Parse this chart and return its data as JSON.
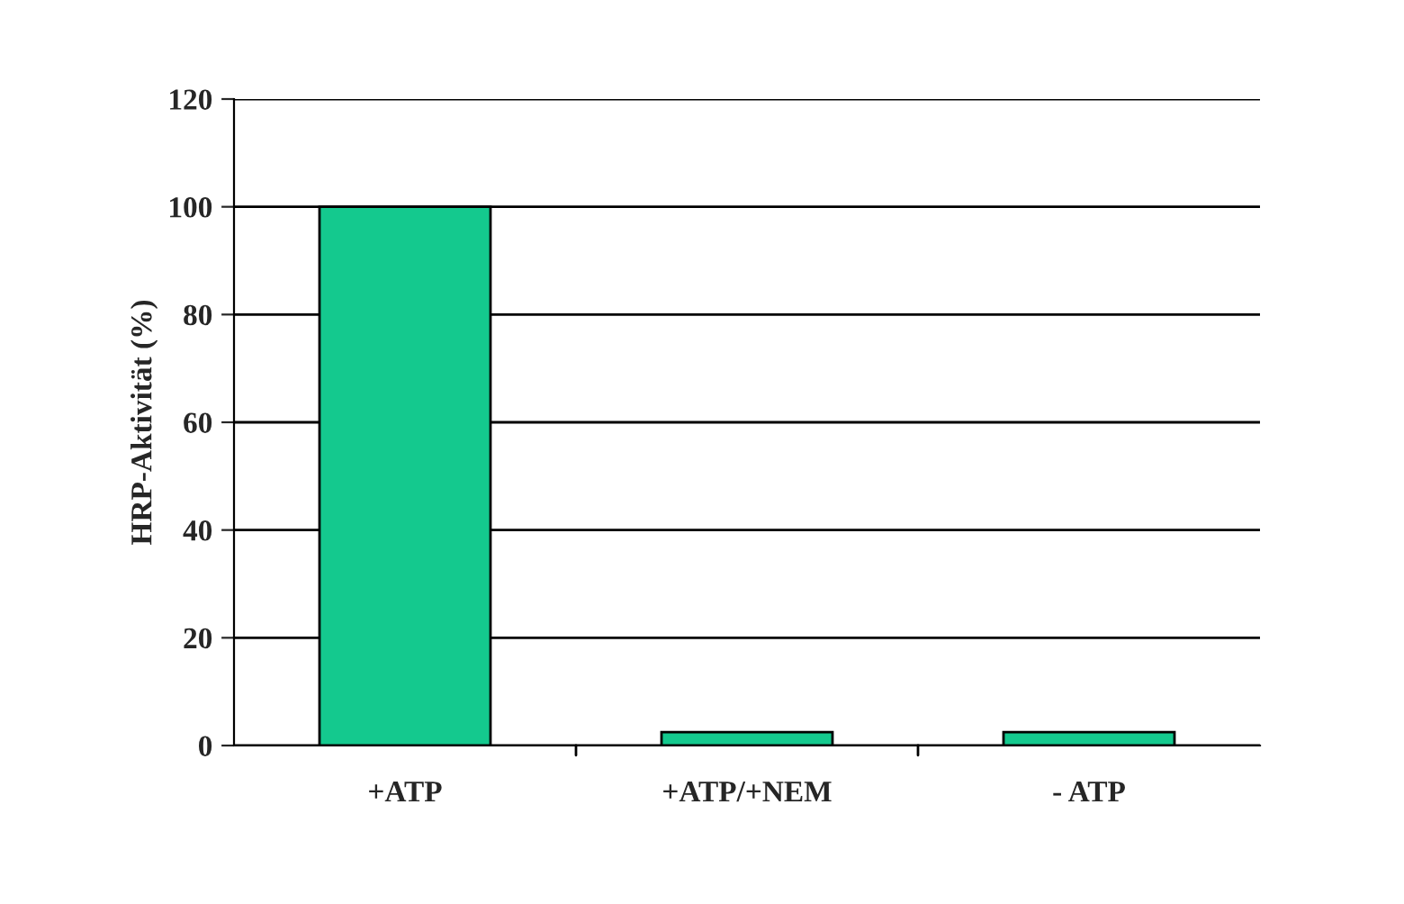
{
  "chart_data": {
    "type": "bar",
    "ylabel": "HRP-Aktivität (%)",
    "categories": [
      "+ATP",
      "+ATP/+NEM",
      "- ATP"
    ],
    "values": [
      100,
      2.5,
      2.5
    ],
    "color": "#14c98e",
    "ylim": [
      0,
      120
    ],
    "yticks": [
      0,
      20,
      40,
      60,
      80,
      100,
      120
    ],
    "grid": "y",
    "legend": false
  }
}
